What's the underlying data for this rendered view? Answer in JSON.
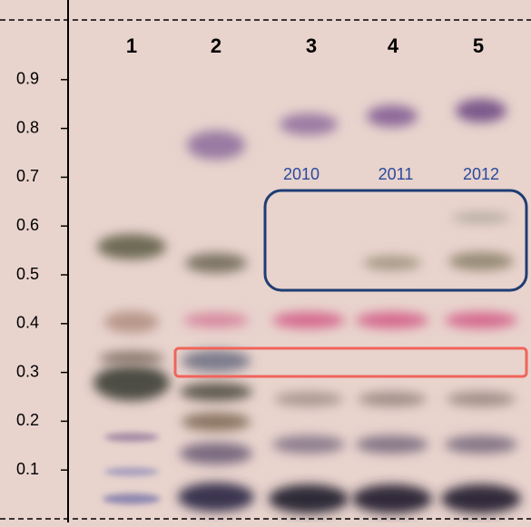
{
  "axis": {
    "ticks": [
      0.9,
      0.8,
      0.7,
      0.6,
      0.5,
      0.4,
      0.3,
      0.2,
      0.1
    ]
  },
  "lanes": [
    "1",
    "2",
    "3",
    "4",
    "5"
  ],
  "years": [
    "2010",
    "2011",
    "2012"
  ]
}
